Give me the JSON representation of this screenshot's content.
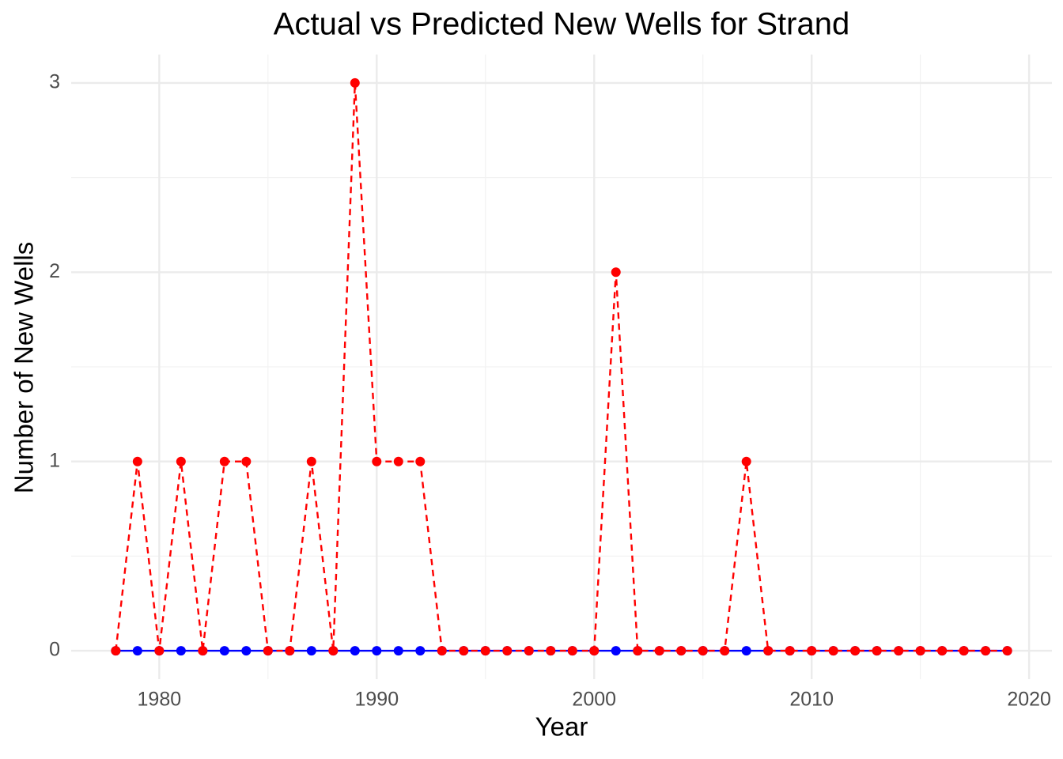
{
  "chart_data": {
    "type": "line",
    "title": "Actual vs Predicted New Wells for Strand",
    "x_label": "Year",
    "y_label": "Number of New Wells",
    "x": [
      1978,
      1979,
      1980,
      1981,
      1982,
      1983,
      1984,
      1985,
      1986,
      1987,
      1988,
      1989,
      1990,
      1991,
      1992,
      1993,
      1994,
      1995,
      1996,
      1997,
      1998,
      1999,
      2000,
      2001,
      2002,
      2003,
      2004,
      2005,
      2006,
      2007,
      2008,
      2009,
      2010,
      2011,
      2012,
      2013,
      2014,
      2015,
      2016,
      2017,
      2018,
      2019
    ],
    "series": [
      {
        "color": "#0000ff",
        "dash": false,
        "values": [
          0,
          0,
          0,
          0,
          0,
          0,
          0,
          0,
          0,
          0,
          0,
          0,
          0,
          0,
          0,
          0,
          0,
          0,
          0,
          0,
          0,
          0,
          0,
          0,
          0,
          0,
          0,
          0,
          0,
          0,
          0,
          0,
          0,
          0,
          0,
          0,
          0,
          0,
          0,
          0,
          0,
          0
        ]
      },
      {
        "color": "#ff0000",
        "dash": true,
        "values": [
          0,
          1,
          0,
          1,
          0,
          1,
          1,
          0,
          0,
          1,
          0,
          3,
          1,
          1,
          1,
          0,
          0,
          0,
          0,
          0,
          0,
          0,
          0,
          2,
          0,
          0,
          0,
          0,
          0,
          1,
          0,
          0,
          0,
          0,
          0,
          0,
          0,
          0,
          0,
          0,
          0,
          0
        ]
      }
    ],
    "xlim": [
      1975.95,
      2021.05
    ],
    "xticks": [
      1980,
      1990,
      2000,
      2010,
      2020
    ],
    "ylim": [
      -0.15,
      3.15
    ],
    "yticks": [
      0,
      1,
      2,
      3
    ],
    "grid": true
  }
}
